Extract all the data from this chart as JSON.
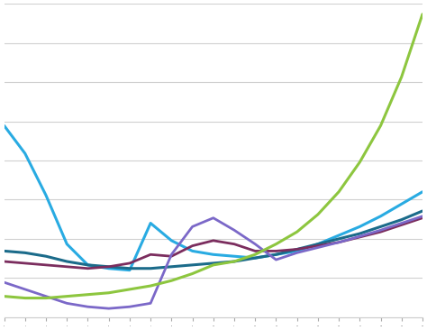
{
  "x": [
    0,
    1,
    2,
    3,
    4,
    5,
    6,
    7,
    8,
    9,
    10,
    11,
    12,
    13,
    14,
    15,
    16,
    17,
    18,
    19,
    20
  ],
  "series": {
    "light_blue": {
      "color": "#29ABE2",
      "linewidth": 2.2,
      "y": [
        7.0,
        6.2,
        5.0,
        3.6,
        3.0,
        2.9,
        2.85,
        4.2,
        3.7,
        3.4,
        3.3,
        3.25,
        3.2,
        3.3,
        3.4,
        3.6,
        3.85,
        4.1,
        4.4,
        4.75,
        5.1
      ]
    },
    "dark_teal": {
      "color": "#1B6B8A",
      "linewidth": 2.2,
      "y": [
        3.4,
        3.35,
        3.25,
        3.1,
        3.0,
        2.95,
        2.9,
        2.9,
        2.95,
        3.0,
        3.05,
        3.1,
        3.2,
        3.3,
        3.45,
        3.6,
        3.75,
        3.9,
        4.1,
        4.3,
        4.55
      ]
    },
    "dark_red": {
      "color": "#7B2D5E",
      "linewidth": 2.0,
      "y": [
        3.1,
        3.05,
        3.0,
        2.95,
        2.9,
        2.95,
        3.05,
        3.3,
        3.25,
        3.55,
        3.7,
        3.6,
        3.4,
        3.4,
        3.45,
        3.55,
        3.65,
        3.8,
        3.95,
        4.15,
        4.35
      ]
    },
    "purple": {
      "color": "#7B68C8",
      "linewidth": 2.0,
      "y": [
        2.5,
        2.3,
        2.1,
        1.9,
        1.8,
        1.75,
        1.8,
        1.9,
        3.3,
        4.1,
        4.35,
        4.0,
        3.6,
        3.15,
        3.35,
        3.5,
        3.65,
        3.82,
        4.0,
        4.2,
        4.4
      ]
    },
    "green": {
      "color": "#8DC63F",
      "linewidth": 2.2,
      "y": [
        2.1,
        2.05,
        2.05,
        2.1,
        2.15,
        2.2,
        2.3,
        2.4,
        2.55,
        2.75,
        3.0,
        3.1,
        3.3,
        3.6,
        3.95,
        4.45,
        5.1,
        5.95,
        7.0,
        8.4,
        10.2
      ]
    }
  },
  "background_color": "#FFFFFF",
  "grid_color": "#D0D0D0",
  "ylim": [
    1.5,
    10.5
  ],
  "xlim": [
    0,
    20
  ],
  "n_yticks": 9,
  "n_xticks": 21
}
